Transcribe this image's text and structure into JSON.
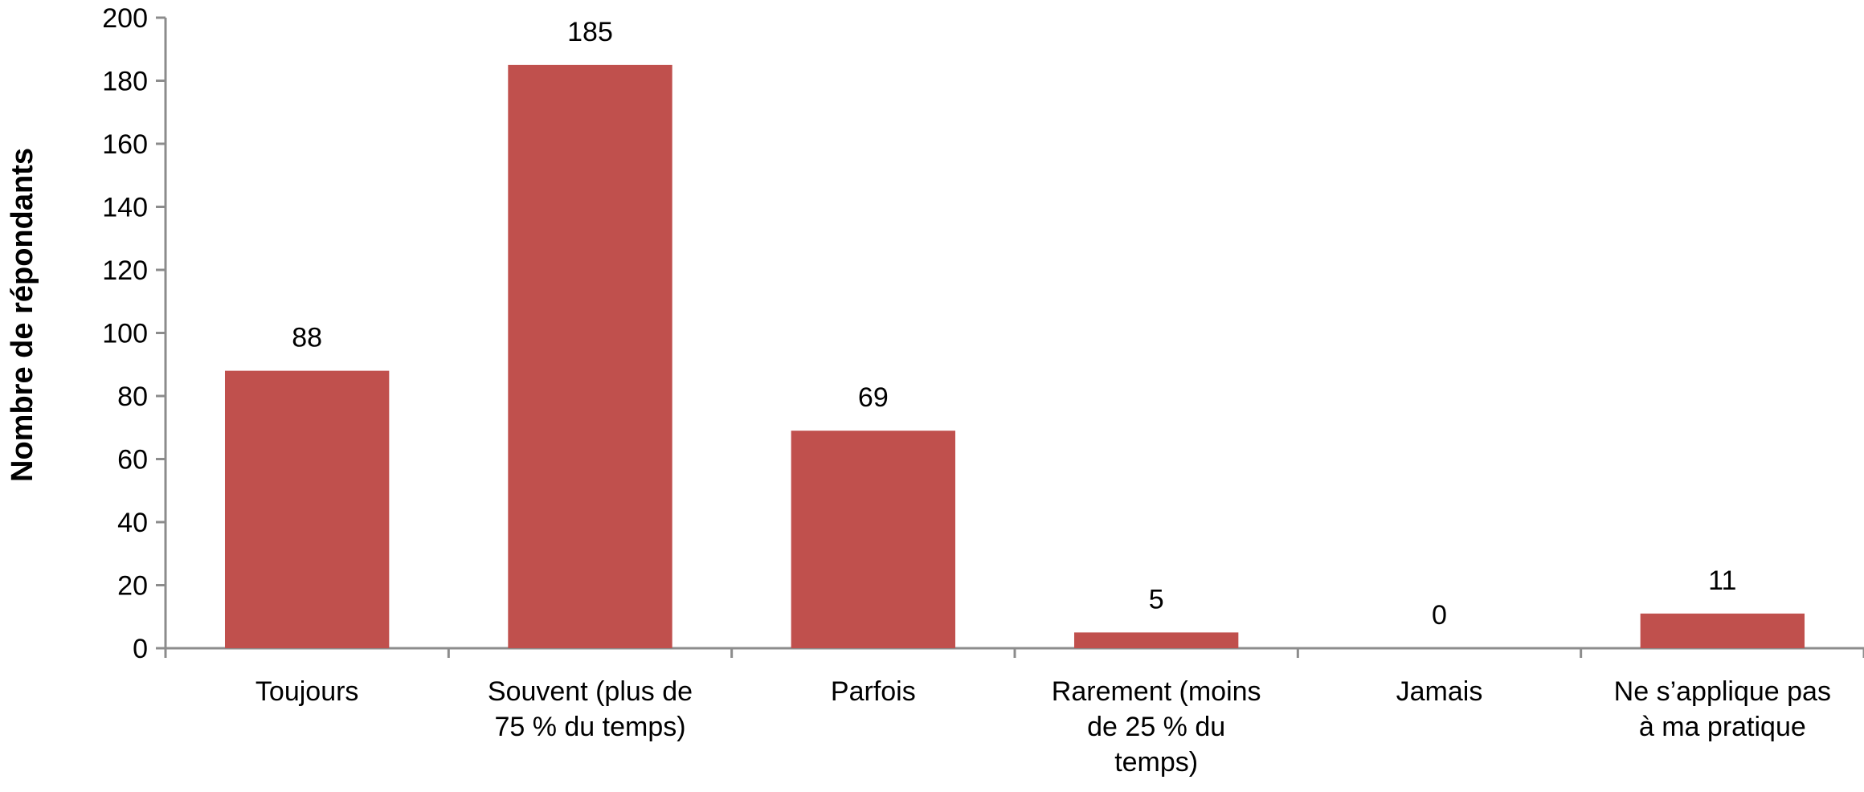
{
  "chart_data": {
    "type": "bar",
    "title": "",
    "xlabel": "",
    "ylabel": "Nombre de répondants",
    "ylim": [
      0,
      200
    ],
    "yticks": [
      0,
      20,
      40,
      60,
      80,
      100,
      120,
      140,
      160,
      180,
      200
    ],
    "grid": false,
    "legend": "none",
    "bar_color": "#c0504d",
    "categories": [
      [
        "Toujours"
      ],
      [
        "Souvent (plus de",
        "75 % du temps)"
      ],
      [
        "Parfois"
      ],
      [
        "Rarement (moins",
        "de 25 % du",
        "temps)"
      ],
      [
        "Jamais"
      ],
      [
        "Ne s’applique pas",
        "à ma pratique"
      ]
    ],
    "values": [
      88,
      185,
      69,
      5,
      0,
      11
    ]
  }
}
